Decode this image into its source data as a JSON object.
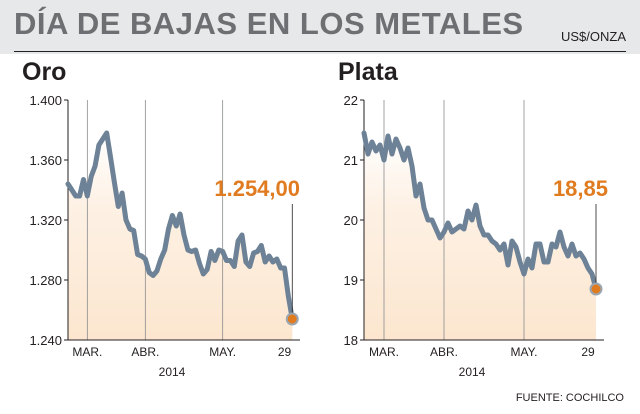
{
  "header": {
    "title": "DÍA DE BAJAS EN LOS METALES",
    "unit": "US$/ONZA"
  },
  "footer": {
    "source": "FUENTE: COCHILCO"
  },
  "colors": {
    "line": "#6d8296",
    "accent": "#e07b1f",
    "fill_top": "#fce6cf",
    "axis": "#231f20",
    "header_band": "#e7e8e9"
  },
  "chart_data": [
    {
      "type": "line",
      "title": "Oro",
      "xlabel": "2014",
      "ylabel": "",
      "ylim": [
        1240,
        1400
      ],
      "yticks": [
        1240,
        1280,
        1320,
        1360,
        1400
      ],
      "ytick_labels": [
        "1.240",
        "1.280",
        "1.320",
        "1.360",
        "1.400"
      ],
      "xlim": [
        0,
        60
      ],
      "xticks": [
        {
          "x": 5,
          "label": "MAR."
        },
        {
          "x": 20,
          "label": "ABR."
        },
        {
          "x": 40,
          "label": "MAY."
        },
        {
          "x": 56,
          "label": "29"
        }
      ],
      "grid_x": [
        5,
        20,
        40
      ],
      "grid": false,
      "last_value_label": "1.254,00",
      "series": [
        {
          "x": [
            0,
            1,
            2,
            3,
            4,
            5,
            6,
            7,
            8,
            9,
            10,
            11,
            12,
            13,
            14,
            15,
            16,
            17,
            18,
            19,
            20,
            21,
            22,
            23,
            24,
            25,
            26,
            27,
            28,
            29,
            30,
            31,
            32,
            33,
            34,
            35,
            36,
            37,
            38,
            39,
            40,
            41,
            42,
            43,
            44,
            45,
            46,
            47,
            48,
            49,
            50,
            51,
            52,
            53,
            54,
            55,
            56,
            57,
            58
          ],
          "values": [
            1344,
            1340,
            1336,
            1336,
            1347,
            1336,
            1349,
            1356,
            1370,
            1374,
            1378,
            1362,
            1345,
            1329,
            1338,
            1320,
            1314,
            1313,
            1297,
            1296,
            1294,
            1285,
            1283,
            1286,
            1294,
            1300,
            1314,
            1323,
            1316,
            1324,
            1310,
            1300,
            1299,
            1300,
            1291,
            1284,
            1287,
            1299,
            1293,
            1300,
            1299,
            1293,
            1293,
            1289,
            1306,
            1310,
            1292,
            1289,
            1298,
            1299,
            1303,
            1292,
            1296,
            1292,
            1294,
            1288,
            1288,
            1269,
            1254
          ]
        }
      ]
    },
    {
      "type": "line",
      "title": "Plata",
      "xlabel": "2014",
      "ylabel": "",
      "ylim": [
        18,
        22
      ],
      "yticks": [
        18,
        19,
        20,
        21,
        22
      ],
      "ytick_labels": [
        "18",
        "19",
        "20",
        "21",
        "22"
      ],
      "xlim": [
        0,
        60
      ],
      "xticks": [
        {
          "x": 5,
          "label": "MAR."
        },
        {
          "x": 20,
          "label": "ABR."
        },
        {
          "x": 40,
          "label": "MAY."
        },
        {
          "x": 56,
          "label": "29"
        }
      ],
      "grid_x": [
        5,
        20,
        40
      ],
      "grid": false,
      "last_value_label": "18,85",
      "series": [
        {
          "x": [
            0,
            1,
            2,
            3,
            4,
            5,
            6,
            7,
            8,
            9,
            10,
            11,
            12,
            13,
            14,
            15,
            16,
            17,
            18,
            19,
            20,
            21,
            22,
            23,
            24,
            25,
            26,
            27,
            28,
            29,
            30,
            31,
            32,
            33,
            34,
            35,
            36,
            37,
            38,
            39,
            40,
            41,
            42,
            43,
            44,
            45,
            46,
            47,
            48,
            49,
            50,
            51,
            52,
            53,
            54,
            55,
            56,
            57,
            58
          ],
          "values": [
            21.45,
            21.1,
            21.3,
            21.15,
            21.25,
            21.0,
            21.4,
            21.1,
            21.35,
            21.2,
            21.0,
            21.2,
            20.9,
            20.4,
            20.6,
            20.2,
            20.0,
            20.0,
            19.85,
            19.7,
            19.8,
            19.95,
            19.8,
            19.85,
            19.9,
            19.85,
            20.15,
            20.0,
            20.25,
            19.9,
            19.75,
            19.75,
            19.65,
            19.6,
            19.5,
            19.6,
            19.25,
            19.65,
            19.55,
            19.3,
            19.1,
            19.35,
            19.2,
            19.6,
            19.6,
            19.3,
            19.3,
            19.6,
            19.55,
            19.8,
            19.55,
            19.4,
            19.6,
            19.4,
            19.45,
            19.35,
            19.2,
            19.1,
            18.85
          ]
        }
      ]
    }
  ]
}
